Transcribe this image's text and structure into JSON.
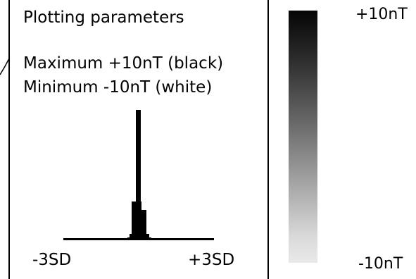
{
  "panel": {
    "title": "Plotting parameters",
    "maximum": "Maximum +10nT (black)",
    "minimum": "Minimum -10nT (white)"
  },
  "histogram": {
    "left_label": "-3SD",
    "right_label": "+3SD"
  },
  "colour_scale": {
    "max_label": "+10nT",
    "min_label": "-10nT",
    "top_color": "#050505",
    "bottom_color": "#e9e9e9"
  }
}
